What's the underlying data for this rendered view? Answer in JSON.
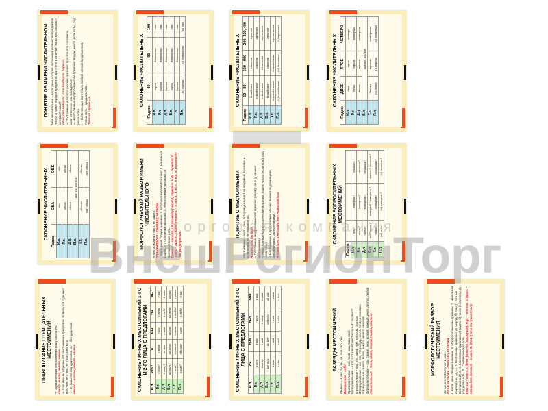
{
  "watermark": {
    "brand": "ВнешРегионТорг",
    "subtitle": "торговая компания"
  },
  "cards": [
    {
      "title": "ПОНЯТИЕ ОБ ИМЕНИ ЧИСЛИТЕЛЬНОМ",
      "kind": "text",
      "lines": [
        "Имя числительное – часть речи, которая обозначает количество предметов, число, а также порядок предметов при счёте и отвечает на вопрос сколько? который? какой?",
        "один, пятнадцать, сто двадцать первый.",
        "⇨ Постоянные морфологические признаки: простое или составное, количественное или порядковое.",
        "⇨ Непостоянные морфологические признаки: падеж, число (если есть), род (если есть).",
        "⇨ Числительные могут быть любым членом предложения.",
        "Пятью пять – двадцать пять.",
        "Третий справа – я."
      ]
    },
    {
      "title": "СКЛОНЕНИЕ ЧИСЛИТЕЛЬНЫХ",
      "kind": "table",
      "headers": [
        "Падеж",
        "40",
        "90",
        "100"
      ],
      "rows": [
        [
          "И.п.",
          "сорок",
          "девяносто",
          "сто"
        ],
        [
          "Р.п.",
          "сорока",
          "девяноста",
          "ста"
        ],
        [
          "Д.п.",
          "сорока",
          "девяноста",
          "ста"
        ],
        [
          "В.п.",
          "сорок",
          "девяносто",
          "сто"
        ],
        [
          "Т.п.",
          "сорока",
          "девяноста",
          "ста"
        ],
        [
          "П.п.",
          "(о) сорока",
          "(о) девяноста",
          "(о) ста"
        ]
      ]
    },
    {
      "title": "СКЛОНЕНИЕ ЧИСЛИТЕЛЬНЫХ",
      "kind": "table",
      "headers": [
        "Падеж",
        "50 – 80",
        "500 – 900",
        "200, 300, 400"
      ],
      "rows": [
        [
          "И.п.",
          "семьдесят",
          "семьсот",
          "триста"
        ],
        [
          "Р.п.",
          "семидесяти",
          "семисот",
          "трёхсот"
        ],
        [
          "Д.п.",
          "семидесяти",
          "семистам",
          "трёмстам"
        ],
        [
          "В.п.",
          "семьдесят",
          "семьсот",
          "триста"
        ],
        [
          "Т.п.",
          "семьюдесятью",
          "семьюстами",
          "тремястами"
        ],
        [
          "П.п.",
          "(о) семидесяти",
          "(о) семистах",
          "(о) трёхстах"
        ]
      ]
    },
    {
      "title": "СКЛОНЕНИЕ ЧИСЛИТЕЛЬНЫХ",
      "kind": "table",
      "headers": [
        "Падеж",
        "ДВОЕ",
        "ТРОЕ",
        "ЧЕТВЕРО"
      ],
      "rows": [
        [
          "И.п.",
          "двое",
          "трое",
          "четверо"
        ],
        [
          "Р.п.",
          "двоих",
          "троих",
          "четверых"
        ],
        [
          "Д.п.",
          "двоим",
          "троим",
          "четверым"
        ],
        [
          "В.п.",
          "как и.п. или р.п.",
          "",
          ""
        ],
        [
          "Т.п.",
          "двоими",
          "троими",
          "четверыми"
        ],
        [
          "П.п.",
          "(о) двоих",
          "(о) троих",
          "(о) четверых"
        ]
      ]
    },
    {
      "title": "СКЛОНЕНИЕ ЧИСЛИТЕЛЬНЫХ",
      "kind": "table",
      "headers": [
        "Падеж",
        "ОБА",
        "ОБЕ"
      ],
      "rows": [
        [
          "И.п.",
          "оба",
          "обе"
        ],
        [
          "Р.п.",
          "обоих",
          "обеих"
        ],
        [
          "Д.п.",
          "обоим",
          "обеим"
        ],
        [
          "В.п.",
          "как и.п. или р.п.",
          ""
        ],
        [
          "Т.п.",
          "обоими",
          "обеими"
        ],
        [
          "П.п.",
          "(об) обоих",
          "(об) обеих"
        ]
      ]
    },
    {
      "title": "МОРФОЛОГИЧЕСКИЙ РАЗБОР ИМЕНИ ЧИСЛИТЕЛЬНОГО",
      "kind": "text",
      "lines": [
        "В третью комнату никто не зашёл.",
        "ПЛАН РАЗБОРА · ОБРАЗЕЦ РАЗБОРА",
        "I. Часть речи. Общее значение. II. Морфологические признаки: 1. Начальная форма. 2. Постоянные признаки. 3. Непостоянные признаки. III. Синтаксическая роль.",
        "Третью – числит. I. В комнату (какую?) третью. Н.ф. – третий. II. Пост. – прост., поряд. Непост. – в вин.п., в ед.ч., в ж.р. III. В комнату (какую?) третью."
      ]
    },
    {
      "title": "ПОНЯТИЕ О МЕСТОИМЕНИИ",
      "kind": "text",
      "lines": [
        "Местоимение – часть речи, которая указывает на предметы, признаки и количества, но не называет их.",
        "Я знаю, кто бы был.",
        "⇨ Постоянный морфологический признак: разряд, лицо (у личных местоимений).",
        "⇨ Непостоянные морфологические признаки: падеж, число (если есть), род (если есть).",
        "⇨ Местоимения в предложении обычно бывают подлежащими, дополнениями, определениями.",
        "Я твой друг и не пойду. Ему нравится дом."
      ]
    },
    {
      "title": "СКЛОНЕНИЕ ВОПРОСИТЕЛЬНЫХ МЕСТОИМЕНИЙ",
      "kind": "table",
      "green": true,
      "headers": [
        "Падеж",
        "",
        "",
        ""
      ],
      "rows": [
        [
          "И.п.",
          "чей?",
          "который?",
          "сколько?"
        ],
        [
          "Р.п.",
          "чьего?",
          "которого?",
          "скольких?"
        ],
        [
          "Д.п.",
          "чьему?",
          "которому?",
          "скольким?"
        ],
        [
          "В.п.",
          "чей? чьего?",
          "который? которого?",
          "сколько? скольких?"
        ],
        [
          "Т.п.",
          "чьим?",
          "которым?",
          "сколькими?"
        ],
        [
          "П.п.",
          "(о) чьём?",
          "(о) котором?",
          "(о) скольких?"
        ]
      ]
    },
    {
      "title": "ПРАВОПИСАНИЕ ОТРИЦАТЕЛЬНЫХ МЕСТОИМЕНИЙ",
      "kind": "text",
      "lines": [
        "⇨ Отрицательные местоимения пишутся слитно:",
        "никто, ничто, некого, нечего.",
        "⇨ Если не и ни отделены от местоимения предлогом, то пишутся отдельно:",
        "ни о чём, не о чём, не у кого, ни у кого.",
        "⇨ Не- пишется под ударением, ни- – без ударения:",
        "некого – никого, нечего – ничего."
      ]
    },
    {
      "title": "СКЛОНЕНИЕ ЛИЧНЫХ МЕСТОИМЕНИЙ 1-ГО И 2-ГО ЛИЦА С ПРЕДЛОГАМИ",
      "kind": "table",
      "green": true,
      "headers": [
        "И.п.",
        "кто?",
        "я",
        "мы",
        "ты",
        "вы"
      ],
      "rows": [
        [
          "Р.п.",
          "у кого?",
          "у меня",
          "у нас",
          "у тебя",
          "у вас"
        ],
        [
          "Д.п.",
          "к кому?",
          "ко мне",
          "к нам",
          "к тебе",
          "к вам"
        ],
        [
          "В.п.",
          "на кого?",
          "на меня",
          "на нас",
          "на тебя",
          "на вас"
        ],
        [
          "Т.п.",
          "с кем?",
          "со мной",
          "с нами",
          "с тобой",
          "с вами"
        ],
        [
          "П.п.",
          "о ком?",
          "обо мне",
          "о нас",
          "о тебе",
          "о вас"
        ]
      ]
    },
    {
      "title": "СКЛОНЕНИЕ ЛИЧНЫХ МЕСТОИМЕНИЙ 3-ГО ЛИЦА С ПРЕДЛОГАМИ",
      "kind": "table",
      "green": true,
      "headers": [
        "И.п.",
        "он",
        "она",
        "оно",
        "они"
      ],
      "rows": [
        [
          "Р.п.",
          "у него",
          "у неё",
          "у него",
          "у них"
        ],
        [
          "Д.п.",
          "к нему",
          "к ней",
          "к нему",
          "к ним"
        ],
        [
          "В.п.",
          "на него",
          "на неё",
          "на него",
          "на них"
        ],
        [
          "Т.п.",
          "с ним",
          "с ней",
          "с ним",
          "с ними"
        ],
        [
          "П.п.",
          "о нём",
          "о ней",
          "о нём",
          "о них"
        ]
      ]
    },
    {
      "title": "РАЗРЯДЫ МЕСТОИМЕНИЙ",
      "kind": "text",
      "lines": [
        "Личные – я, мы, ты, вы, он, она, оно, они",
        "Возвратное – себя",
        "Притяжательные – мой, твой, наш, ваш, свой",
        "Вопросительные – кто? что? какой? чей? который? сколько?",
        "Относительные – кто, что, какой, чей, который, сколько",
        "Неопределённые – кое-что, что-нибудь, некто, нечто, несколько",
        "Отрицательные – никто, ничто, некого, нечего, никакой",
        "Определительные – сам, самый, весь, всякий, каждый, иной, другой, любой",
        "Указательные – тот, этот, такой, таков, столько"
      ]
    },
    {
      "title": "МОРФОЛОГИЧЕСКИЙ РАЗБОР МЕСТОИМЕНИЯ",
      "kind": "text",
      "lines": [
        "Ночью кто-то постучал в окно.",
        "ПЛАН РАЗБОРА · ОБРАЗЕЦ РАЗБОРА",
        "I. Часть речи. Общее значение. II. Морфологические признаки: 1. Начальная форма (и.п., ед.ч.). 2. Постоянные признаки: а) разряд, б) лицо (у личных местоимений). 3. Непостоянные признаки: а) падеж, б) число (если есть), в) род (если есть). III. Синтаксическая роль.",
        "Кто-то – мест. I. (Кто?) кто-то (постучал). Н.ф. – кто-то. II. Пост. – неопредел. Непост. – в им.п. III. (Кто?) кто-то (постучал)."
      ]
    }
  ]
}
